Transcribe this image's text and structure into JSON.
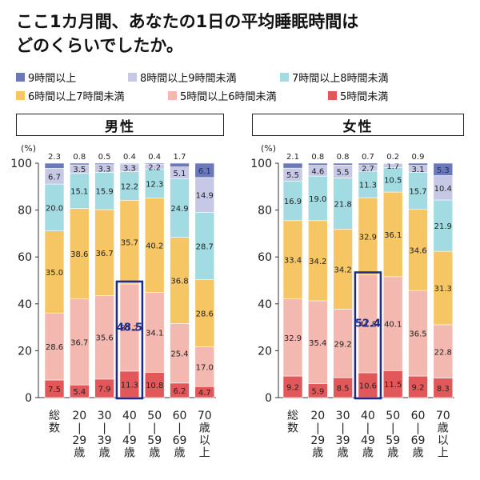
{
  "title_line1": "ここ1カ月間、あなたの1日の平均睡眠時間は",
  "title_line2": "どのくらいでしたか。",
  "legend": [
    {
      "label": "9時間以上",
      "color": "#6b79b8"
    },
    {
      "label": "8時間以上9時間未満",
      "color": "#c6c8e6"
    },
    {
      "label": "7時間以上8時間未満",
      "color": "#a3dbe3"
    },
    {
      "label": "6時間以上7時間未満",
      "color": "#f7c664"
    },
    {
      "label": "5時間以上6時間未満",
      "color": "#f3b8b0"
    },
    {
      "label": "5時間未満",
      "color": "#e2585a"
    }
  ],
  "highlight_color": "#1e2a8c",
  "chart_data": [
    {
      "type": "bar",
      "stacked": true,
      "title": "男性",
      "unit_label": "(%)",
      "ylim": [
        0,
        100
      ],
      "yticks": [
        0,
        20,
        40,
        60,
        80,
        100
      ],
      "categories": [
        "総数",
        "20\n29歳",
        "30\n39歳",
        "40\n49歳",
        "50\n59歳",
        "60\n69歳",
        "70歳以上"
      ],
      "category_labels": [
        [
          "総",
          "数"
        ],
        [
          "20",
          "|",
          "29",
          "歳"
        ],
        [
          "30",
          "|",
          "39",
          "歳"
        ],
        [
          "40",
          "|",
          "49",
          "歳"
        ],
        [
          "50",
          "|",
          "59",
          "歳"
        ],
        [
          "60",
          "|",
          "69",
          "歳"
        ],
        [
          "70",
          "歳",
          "以",
          "上"
        ]
      ],
      "series": [
        {
          "name": "5時間未満",
          "values": [
            7.5,
            5.4,
            7.9,
            11.3,
            10.8,
            6.2,
            4.7
          ]
        },
        {
          "name": "5時間以上6時間未満",
          "values": [
            28.6,
            36.7,
            35.6,
            37.2,
            34.1,
            25.4,
            17.0
          ]
        },
        {
          "name": "6時間以上7時間未満",
          "values": [
            35.0,
            38.6,
            36.7,
            35.7,
            40.2,
            36.8,
            28.6
          ]
        },
        {
          "name": "7時間以上8時間未満",
          "values": [
            20.0,
            15.1,
            15.9,
            12.2,
            12.3,
            24.9,
            28.7
          ]
        },
        {
          "name": "8時間以上9時間未満",
          "values": [
            6.7,
            3.5,
            3.3,
            3.3,
            2.2,
            5.1,
            14.9
          ]
        },
        {
          "name": "9時間以上",
          "values": [
            2.3,
            0.8,
            0.5,
            0.4,
            0.4,
            1.7,
            6.1
          ]
        }
      ],
      "highlight": {
        "category_index": 3,
        "total_label": "48.5"
      }
    },
    {
      "type": "bar",
      "stacked": true,
      "title": "女性",
      "unit_label": "(%)",
      "ylim": [
        0,
        100
      ],
      "yticks": [
        0,
        20,
        40,
        60,
        80,
        100
      ],
      "categories": [
        "総数",
        "20\n29歳",
        "30\n39歳",
        "40\n49歳",
        "50\n59歳",
        "60\n69歳",
        "70歳以上"
      ],
      "category_labels": [
        [
          "総",
          "数"
        ],
        [
          "20",
          "|",
          "29",
          "歳"
        ],
        [
          "30",
          "|",
          "39",
          "歳"
        ],
        [
          "40",
          "|",
          "49",
          "歳"
        ],
        [
          "50",
          "|",
          "59",
          "歳"
        ],
        [
          "60",
          "|",
          "69",
          "歳"
        ],
        [
          "70",
          "歳",
          "以",
          "上"
        ]
      ],
      "series": [
        {
          "name": "5時間未満",
          "values": [
            9.2,
            5.9,
            8.5,
            10.6,
            11.5,
            9.2,
            8.3
          ]
        },
        {
          "name": "5時間以上6時間未満",
          "values": [
            32.9,
            35.4,
            29.2,
            41.8,
            40.1,
            36.5,
            22.8
          ]
        },
        {
          "name": "6時間以上7時間未満",
          "values": [
            33.4,
            34.2,
            34.2,
            32.9,
            36.1,
            34.6,
            31.3
          ]
        },
        {
          "name": "7時間以上8時間未満",
          "values": [
            16.9,
            19.0,
            21.8,
            11.3,
            10.5,
            15.7,
            21.9
          ]
        },
        {
          "name": "8時間以上9時間未満",
          "values": [
            5.5,
            4.6,
            5.5,
            2.7,
            1.7,
            3.1,
            10.4
          ]
        },
        {
          "name": "9時間以上",
          "values": [
            2.1,
            0.8,
            0.8,
            0.7,
            0.2,
            0.9,
            5.3
          ]
        }
      ],
      "highlight": {
        "category_index": 3,
        "total_label": "52.4"
      }
    }
  ]
}
